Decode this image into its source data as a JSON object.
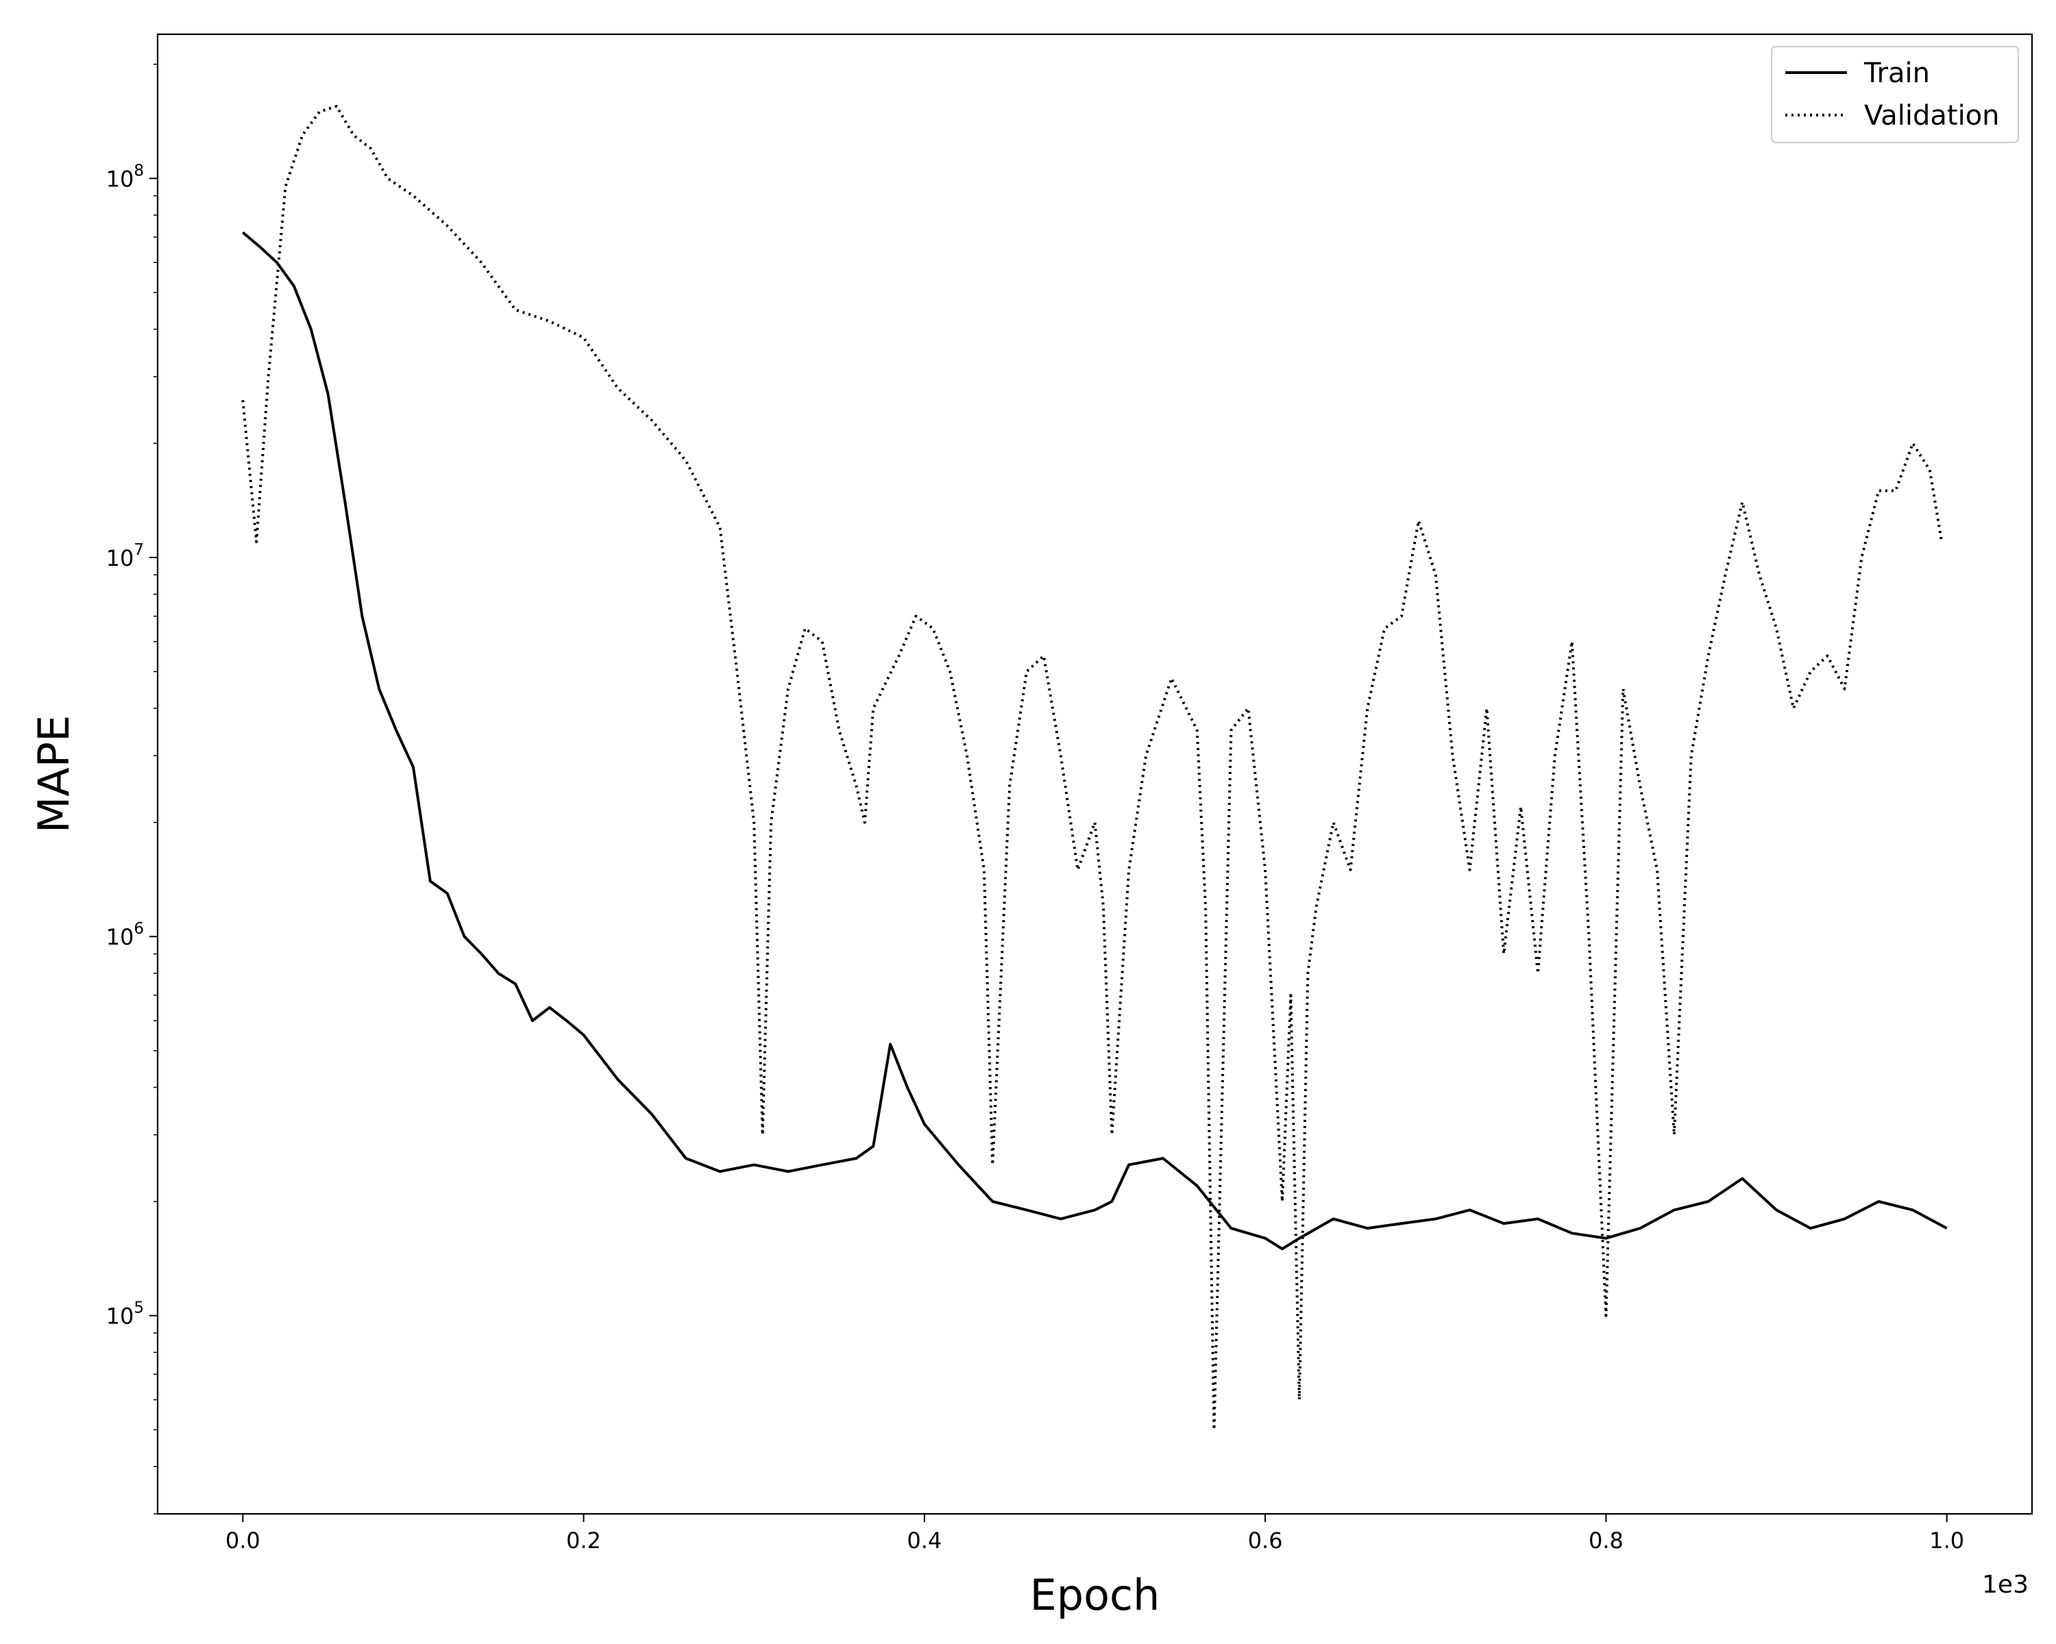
{
  "chart_data": {
    "type": "line",
    "title": "",
    "xlabel": "Epoch",
    "ylabel": "MAPE",
    "x_offset_label": "1e3",
    "xscale": "linear",
    "yscale": "log",
    "xlim": [
      -50,
      1050
    ],
    "ylim": [
      30000,
      240000000
    ],
    "xticks": [
      0,
      200,
      400,
      600,
      800,
      1000
    ],
    "xtick_labels": [
      "0.0",
      "0.2",
      "0.4",
      "0.6",
      "0.8",
      "1.0"
    ],
    "yticks": [
      100000,
      1000000,
      10000000,
      100000000
    ],
    "ytick_labels": [
      {
        "base": "10",
        "exp": "5"
      },
      {
        "base": "10",
        "exp": "6"
      },
      {
        "base": "10",
        "exp": "7"
      },
      {
        "base": "10",
        "exp": "8"
      }
    ],
    "grid": false,
    "legend_position": "top-right",
    "series": [
      {
        "name": "Train",
        "style": "solid",
        "color": "#000000",
        "x": [
          0,
          10,
          20,
          30,
          40,
          50,
          60,
          70,
          80,
          90,
          100,
          110,
          120,
          130,
          140,
          150,
          160,
          170,
          180,
          190,
          200,
          220,
          240,
          260,
          280,
          300,
          320,
          340,
          360,
          370,
          380,
          390,
          400,
          420,
          440,
          460,
          480,
          500,
          510,
          520,
          540,
          560,
          580,
          600,
          610,
          620,
          640,
          660,
          680,
          700,
          720,
          740,
          760,
          780,
          800,
          820,
          840,
          860,
          880,
          900,
          920,
          940,
          960,
          980,
          1000
        ],
        "y": [
          72000000,
          66000000,
          60000000,
          52000000,
          40000000,
          27000000,
          14000000,
          7000000,
          4500000,
          3500000,
          2800000,
          1400000,
          1300000,
          1000000,
          900000,
          800000,
          750000,
          600000,
          650000,
          600000,
          550000,
          420000,
          340000,
          260000,
          240000,
          250000,
          240000,
          250000,
          260000,
          280000,
          520000,
          400000,
          320000,
          250000,
          200000,
          190000,
          180000,
          190000,
          200000,
          250000,
          260000,
          220000,
          170000,
          160000,
          150000,
          160000,
          180000,
          170000,
          175000,
          180000,
          190000,
          175000,
          180000,
          165000,
          160000,
          170000,
          190000,
          200000,
          230000,
          190000,
          170000,
          180000,
          200000,
          190000,
          170000
        ]
      },
      {
        "name": "Validation",
        "style": "dotted",
        "color": "#000000",
        "x": [
          0,
          8,
          15,
          25,
          35,
          45,
          55,
          65,
          75,
          85,
          100,
          120,
          140,
          160,
          180,
          200,
          220,
          240,
          260,
          280,
          290,
          300,
          305,
          310,
          320,
          330,
          340,
          350,
          360,
          365,
          370,
          385,
          395,
          405,
          415,
          425,
          435,
          440,
          450,
          460,
          470,
          480,
          490,
          500,
          505,
          510,
          520,
          530,
          545,
          560,
          565,
          570,
          580,
          590,
          600,
          610,
          615,
          620,
          625,
          630,
          640,
          650,
          660,
          670,
          680,
          690,
          700,
          710,
          720,
          730,
          740,
          750,
          760,
          770,
          780,
          790,
          800,
          810,
          820,
          830,
          840,
          850,
          860,
          870,
          880,
          890,
          900,
          910,
          920,
          930,
          940,
          950,
          960,
          970,
          980,
          990,
          997
        ],
        "y": [
          26000000,
          11000000,
          30000000,
          95000000,
          130000000,
          150000000,
          155000000,
          130000000,
          120000000,
          100000000,
          90000000,
          75000000,
          60000000,
          45000000,
          42000000,
          38000000,
          28000000,
          23000000,
          18000000,
          12000000,
          5000000,
          2000000,
          300000,
          2000000,
          4500000,
          6500000,
          6000000,
          3500000,
          2500000,
          2000000,
          4000000,
          5500000,
          7000000,
          6500000,
          5000000,
          3000000,
          1500000,
          250000,
          2500000,
          5000000,
          5500000,
          3000000,
          1500000,
          2000000,
          1200000,
          300000,
          1500000,
          3000000,
          4800000,
          3500000,
          1200000,
          50000,
          3500000,
          4000000,
          1500000,
          200000,
          700000,
          60000,
          800000,
          1200000,
          2000000,
          1500000,
          4000000,
          6500000,
          7000000,
          12500000,
          9000000,
          3000000,
          1500000,
          4000000,
          900000,
          2200000,
          800000,
          3000000,
          6000000,
          1000000,
          100000,
          4500000,
          2500000,
          1500000,
          300000,
          3000000,
          5500000,
          9000000,
          14000000,
          9000000,
          6500000,
          4000000,
          5000000,
          5500000,
          4500000,
          10000000,
          15000000,
          15000000,
          20000000,
          17000000,
          11000000
        ]
      }
    ]
  }
}
